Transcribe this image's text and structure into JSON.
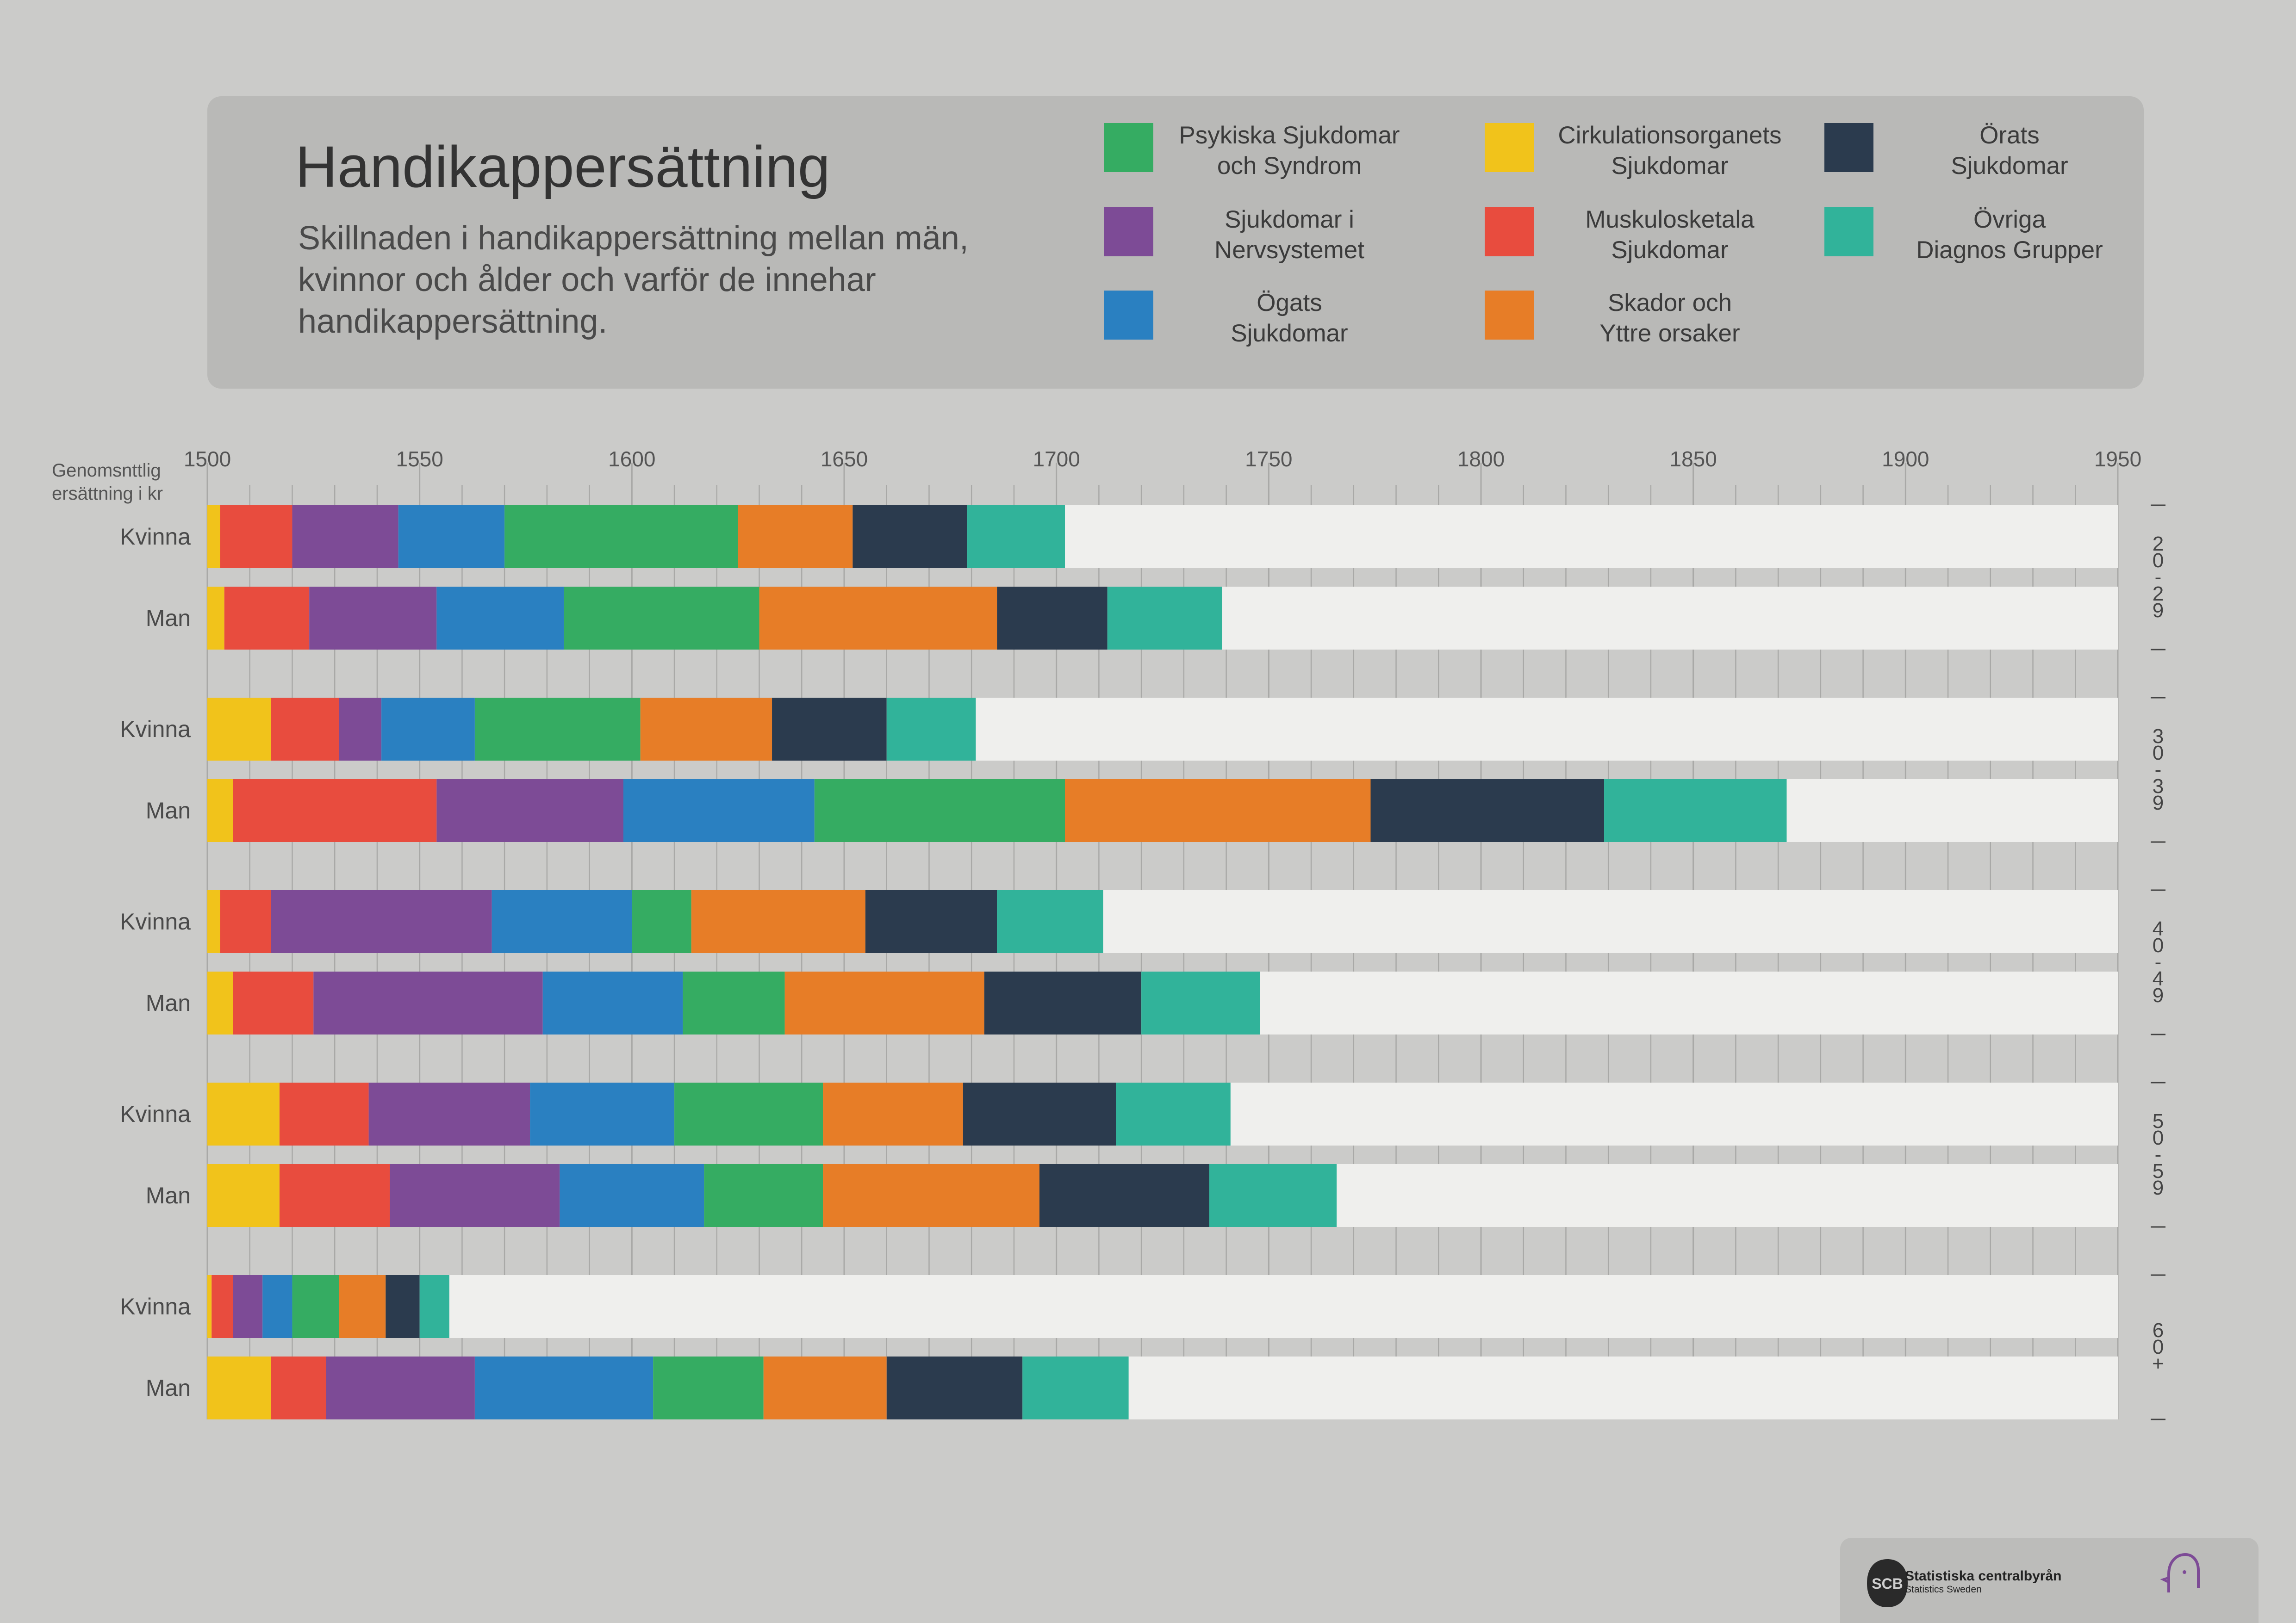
{
  "header": {
    "title": "Handikappersättning",
    "subtitle": "Skillnaden i handikappersättning mellan män, kvinnor och ålder och varför de innehar handikappersättning."
  },
  "legend": [
    {
      "label": "Psykiska Sjukdomar\noch Syndrom",
      "color": "#35ac62"
    },
    {
      "label": "Cirkulationsorganets\nSjukdomar",
      "color": "#f1c31b"
    },
    {
      "label": "Örats\nSjukdomar",
      "color": "#2b3b4e"
    },
    {
      "label": "Sjukdomar i\nNervsystemet",
      "color": "#7d4b96"
    },
    {
      "label": "Muskulosketala\nSjukdomar",
      "color": "#e84c3e"
    },
    {
      "label": "Övriga\nDiagnos Grupper",
      "color": "#31b39a"
    },
    {
      "label": "Ögats\nSjukdomar",
      "color": "#2a80c1"
    },
    {
      "label": "Skador och\nYttre orsaker",
      "color": "#e77d27"
    }
  ],
  "chart_data": {
    "type": "bar",
    "orientation": "horizontal",
    "stacked": true,
    "axis_title": [
      "Genomsnttlig",
      "ersättning i kr"
    ],
    "xlim": [
      1500,
      1950
    ],
    "x_ticks": [
      1500,
      1550,
      1600,
      1650,
      1700,
      1750,
      1800,
      1850,
      1900,
      1950
    ],
    "grid": true,
    "segment_order": [
      "Cirkulationsorganets Sjukdomar",
      "Muskulosketala Sjukdomar",
      "Sjukdomar i Nervsystemet",
      "Ögats Sjukdomar",
      "Psykiska Sjukdomar och Syndrom",
      "Skador och Yttre orsaker",
      "Örats Sjukdomar",
      "Övriga Diagnos Grupper"
    ],
    "segment_colors": [
      "#f1c31b",
      "#e84c3e",
      "#7d4b96",
      "#2a80c1",
      "#35ac62",
      "#e77d27",
      "#2b3b4e",
      "#31b39a"
    ],
    "groups": [
      {
        "age_label": [
          "2",
          "0",
          "-",
          "2",
          "9"
        ],
        "bars": [
          {
            "label": "Kvinna",
            "values": [
              3,
              17,
              25,
              25,
              55,
              27,
              27,
              23
            ]
          },
          {
            "label": "Man",
            "values": [
              4,
              20,
              30,
              30,
              46,
              56,
              26,
              27
            ]
          }
        ]
      },
      {
        "age_label": [
          "3",
          "0",
          "-",
          "3",
          "9"
        ],
        "bars": [
          {
            "label": "Kvinna",
            "values": [
              15,
              16,
              10,
              22,
              39,
              31,
              27,
              21
            ]
          },
          {
            "label": "Man",
            "values": [
              6,
              48,
              44,
              45,
              59,
              72,
              55,
              43
            ]
          }
        ]
      },
      {
        "age_label": [
          "4",
          "0",
          "-",
          "4",
          "9"
        ],
        "bars": [
          {
            "label": "Kvinna",
            "values": [
              3,
              12,
              52,
              33,
              14,
              41,
              31,
              25
            ]
          },
          {
            "label": "Man",
            "values": [
              6,
              19,
              54,
              33,
              24,
              47,
              37,
              28
            ]
          }
        ]
      },
      {
        "age_label": [
          "5",
          "0",
          "-",
          "5",
          "9"
        ],
        "bars": [
          {
            "label": "Kvinna",
            "values": [
              17,
              21,
              38,
              34,
              35,
              33,
              36,
              27
            ]
          },
          {
            "label": "Man",
            "values": [
              17,
              26,
              40,
              34,
              28,
              51,
              40,
              30
            ]
          }
        ]
      },
      {
        "age_label": [
          "6",
          "0",
          "+"
        ],
        "bars": [
          {
            "label": "Kvinna",
            "values": [
              1,
              5,
              7,
              7,
              11,
              11,
              8,
              7
            ]
          },
          {
            "label": "Man",
            "values": [
              15,
              13,
              35,
              42,
              26,
              29,
              32,
              25
            ]
          }
        ]
      }
    ]
  },
  "footer": {
    "org_name": "Statistiska centralbyrån",
    "org_sub": "Statistics Sweden",
    "org_abbr": "SCB",
    "partner_icon": "head-profile-icon"
  }
}
